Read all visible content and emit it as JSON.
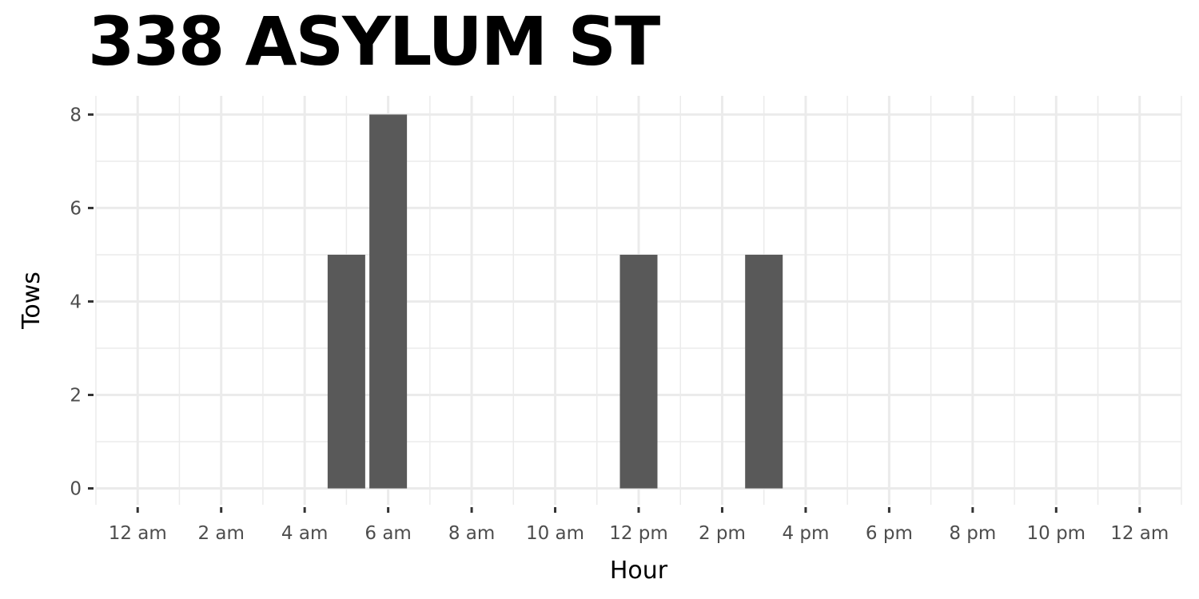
{
  "chart_data": {
    "type": "bar",
    "title": "338 ASYLUM ST",
    "xlabel": "Hour",
    "ylabel": "Tows",
    "x_tick_labels": [
      "12 am",
      "2 am",
      "4 am",
      "6 am",
      "8 am",
      "10 am",
      "12 pm",
      "2 pm",
      "4 pm",
      "6 pm",
      "8 pm",
      "10 pm",
      "12 am"
    ],
    "x_tick_hours": [
      0,
      2,
      4,
      6,
      8,
      10,
      12,
      14,
      16,
      18,
      20,
      22,
      24
    ],
    "y_ticks": [
      0,
      2,
      4,
      6,
      8
    ],
    "xlim": [
      -1,
      25
    ],
    "ylim": [
      -0.35,
      8.4
    ],
    "grid": true,
    "bars": [
      {
        "hour": 5,
        "value": 5
      },
      {
        "hour": 6,
        "value": 8
      },
      {
        "hour": 12,
        "value": 5
      },
      {
        "hour": 15,
        "value": 5
      }
    ],
    "bar_color": "#595959",
    "grid_color": "#ebebeb",
    "tick_color": "#333333"
  }
}
